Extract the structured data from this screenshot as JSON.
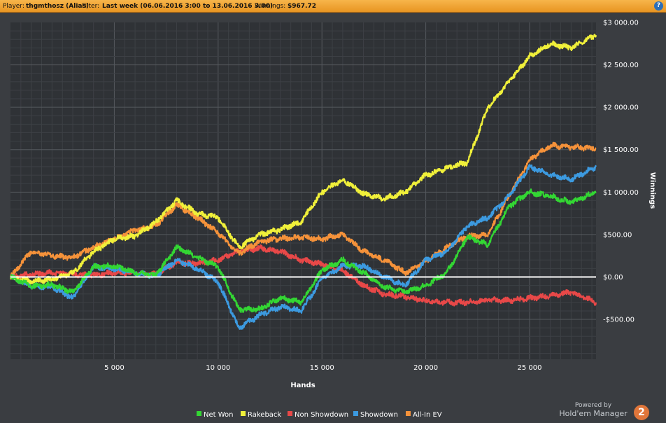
{
  "header": {
    "player_label": "Player:",
    "player_value": "thgmthosz (Alias)",
    "filter_label": "Filter:",
    "filter_value": "Last week (06.06.2016 3:00 to 13.06.2016 3:00)",
    "winnings_label": "Winnings:",
    "winnings_value": "$967.72",
    "help_glyph": "?"
  },
  "branding": {
    "powered_by": "Powered by",
    "product": "Hold'em Manager",
    "version_badge": "2"
  },
  "chart_data": {
    "type": "line",
    "xlabel": "Hands",
    "ylabel": "Winnings",
    "xlim": [
      0,
      28200
    ],
    "ylim": [
      -970,
      3000
    ],
    "x_ticks": [
      5000,
      10000,
      15000,
      20000,
      25000
    ],
    "x_tick_labels": [
      "5 000",
      "10 000",
      "15 000",
      "20 000",
      "25 000"
    ],
    "y_ticks": [
      3000,
      2500,
      2000,
      1500,
      1000,
      500,
      0,
      -500
    ],
    "y_tick_labels": [
      "$3 000.00",
      "$2 500.00",
      "$2 000.00",
      "$1 500.00",
      "$1 000.00",
      "$500.00",
      "$0.00",
      "-$500.00"
    ],
    "grid": true,
    "legend_position": "bottom",
    "x": [
      0,
      1000,
      2000,
      3000,
      4000,
      5000,
      6000,
      7000,
      8000,
      9000,
      10000,
      11000,
      12000,
      13000,
      14000,
      15000,
      16000,
      17000,
      18000,
      19000,
      20000,
      21000,
      22000,
      23000,
      24000,
      25000,
      26000,
      27000,
      28200
    ],
    "series": [
      {
        "name": "Net Won",
        "color": "#33d633",
        "values": [
          0,
          -110,
          -90,
          -180,
          120,
          130,
          50,
          20,
          350,
          230,
          120,
          -380,
          -380,
          -250,
          -300,
          80,
          200,
          50,
          -120,
          -180,
          -100,
          50,
          470,
          380,
          830,
          1000,
          950,
          880,
          1000
        ]
      },
      {
        "name": "Rakeback",
        "color": "#f0f03a",
        "values": [
          0,
          -50,
          -30,
          50,
          300,
          450,
          480,
          650,
          900,
          750,
          700,
          350,
          500,
          560,
          650,
          1000,
          1150,
          980,
          920,
          1000,
          1200,
          1280,
          1350,
          2000,
          2300,
          2600,
          2750,
          2700,
          2850
        ]
      },
      {
        "name": "Non Showdown",
        "color": "#e84848",
        "values": [
          0,
          30,
          50,
          30,
          20,
          50,
          40,
          30,
          170,
          160,
          200,
          300,
          340,
          300,
          200,
          150,
          80,
          -100,
          -200,
          -230,
          -280,
          -300,
          -300,
          -270,
          -280,
          -250,
          -220,
          -180,
          -300
        ]
      },
      {
        "name": "Showdown",
        "color": "#3c9ae0",
        "values": [
          0,
          -110,
          -120,
          -250,
          120,
          100,
          50,
          10,
          200,
          100,
          -60,
          -600,
          -450,
          -350,
          -400,
          -20,
          130,
          130,
          0,
          -100,
          200,
          300,
          600,
          700,
          950,
          1300,
          1200,
          1150,
          1300
        ]
      },
      {
        "name": "All-In EV",
        "color": "#f5923a",
        "values": [
          0,
          300,
          250,
          230,
          350,
          450,
          550,
          600,
          850,
          700,
          520,
          280,
          420,
          450,
          470,
          450,
          500,
          300,
          200,
          50,
          180,
          350,
          480,
          500,
          950,
          1380,
          1550,
          1530,
          1520
        ]
      }
    ]
  }
}
